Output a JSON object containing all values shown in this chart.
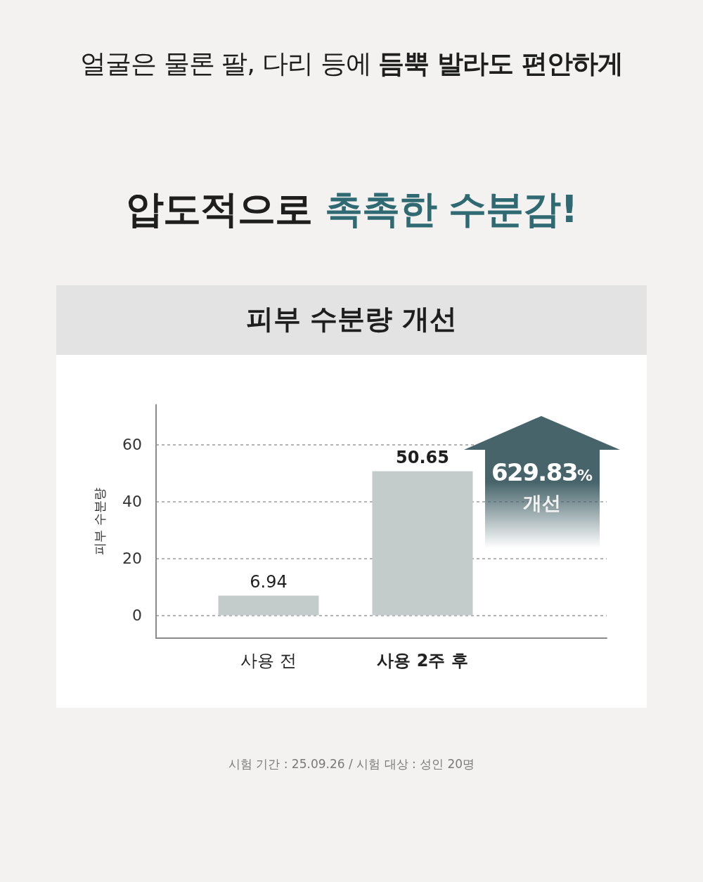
{
  "chart_data": {
    "type": "bar",
    "title": "압도적으로 촉촉한 수분감!",
    "subtitle": "피부 수분량 개선",
    "ylabel": "피부 수분량",
    "categories": [
      "사용 전",
      "사용 2주 후"
    ],
    "values": [
      6.94,
      50.65
    ],
    "color": "#c3cbcb",
    "ylim": [
      -8,
      74
    ],
    "yticks": [
      0,
      20,
      40,
      60
    ],
    "grid": "y",
    "data_labels": true,
    "annotations": [
      "얼굴은 물론 팔, 다리 등에 듬뿍 발라도 편안하게",
      "629.83% 개선",
      "시험 기간 : 25.09.26 / 시험 대상 : 성인 20명"
    ]
  }
}
